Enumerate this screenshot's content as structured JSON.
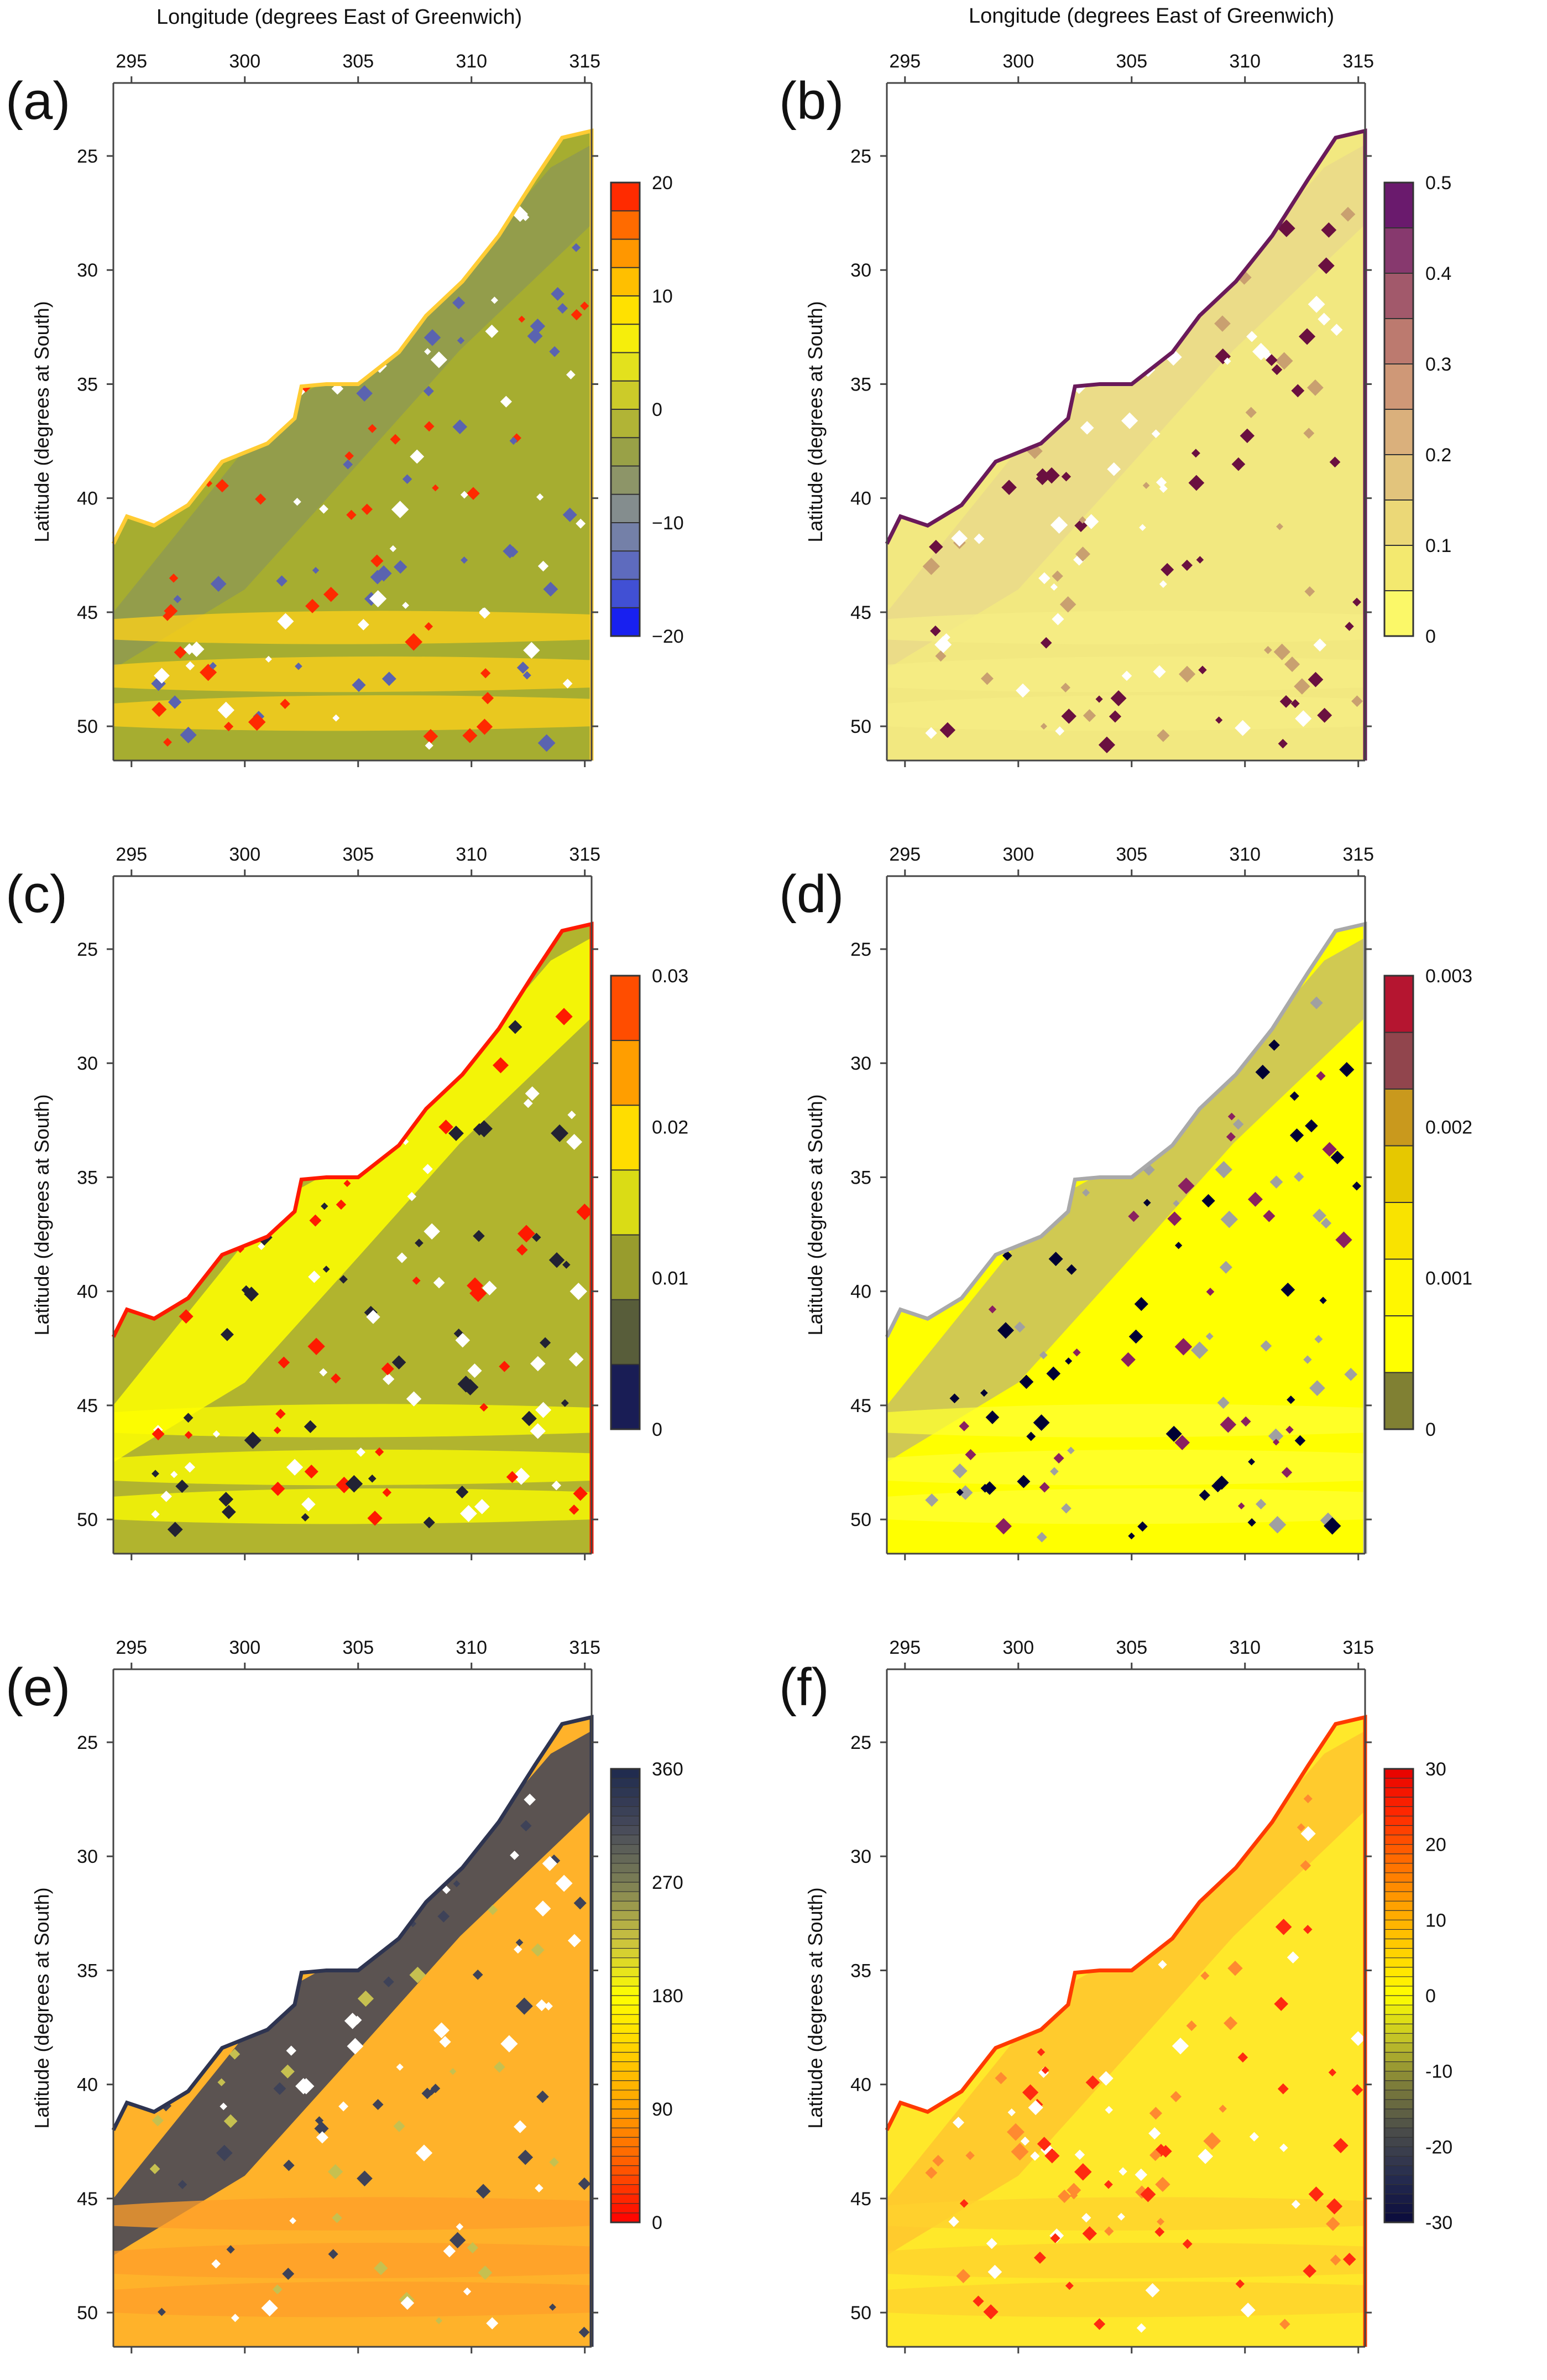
{
  "header": {
    "left_title": "Longitude (degrees East of Greenwich)",
    "right_title": "Longitude (degrees East of Greenwich)"
  },
  "chart_data": [
    {
      "type": "heatmap",
      "panel_label": "(a)",
      "title": "",
      "xlabel": "",
      "ylabel": "Latitude (degrees at South)",
      "x_ticks": [
        295,
        300,
        305,
        310,
        315
      ],
      "y_ticks": [
        25,
        30,
        35,
        40,
        45,
        50
      ],
      "xlim": [
        294.2,
        315.3
      ],
      "ylim": [
        51.5,
        21.8
      ],
      "colorbar": {
        "ticks": [
          "20",
          "10",
          "0",
          "−10",
          "−20"
        ],
        "tick_values": [
          20,
          10,
          0,
          -10,
          -20
        ],
        "range": [
          -20,
          20
        ],
        "levels": 16,
        "colors": [
          "#0000ff",
          "#2f3fe0",
          "#5260c8",
          "#6a76b4",
          "#7e8a9c",
          "#8a8f80",
          "#8f9a50",
          "#a3a83d",
          "#bfbf2e",
          "#d9d724",
          "#ecea15",
          "#fff200",
          "#ffd000",
          "#ffad00",
          "#ff8000",
          "#ff5500",
          "#ff0000"
        ],
        "style": "stepped"
      },
      "map": {
        "land_color": "#a6ad30",
        "land_alt_color": "#8f9a50",
        "band_color": "#ffd21a",
        "coast_color": "#ffcc33",
        "spot_colors": [
          "#ff2a00",
          "#5a63b0",
          "#ffffff"
        ]
      }
    },
    {
      "type": "heatmap",
      "panel_label": "(b)",
      "title": "",
      "xlabel": "",
      "ylabel": "Latitude (degrees at South)",
      "x_ticks": [
        295,
        300,
        305,
        310,
        315
      ],
      "y_ticks": [
        25,
        30,
        35,
        40,
        45,
        50
      ],
      "xlim": [
        294.2,
        315.3
      ],
      "ylim": [
        51.5,
        21.8
      ],
      "colorbar": {
        "ticks": [
          "0.5",
          "0.4",
          "0.3",
          "0.2",
          "0.1",
          "0"
        ],
        "tick_values": [
          0.5,
          0.4,
          0.3,
          0.2,
          0.1,
          0
        ],
        "range": [
          0,
          0.5
        ],
        "levels": 10,
        "colors": [
          "#ffff66",
          "#f7f06a",
          "#efe173",
          "#e6cf7a",
          "#deb97d",
          "#d6a67a",
          "#c88a74",
          "#b06a6a",
          "#94486c",
          "#7a2a70",
          "#5a0a6a"
        ],
        "style": "stepped"
      },
      "map": {
        "land_color": "#f2e880",
        "land_alt_color": "#ead98a",
        "band_color": "#f6ee84",
        "coast_color": "#6a1a5a",
        "spot_colors": [
          "#6a1040",
          "#ffffff",
          "#c9a070"
        ]
      }
    },
    {
      "type": "heatmap",
      "panel_label": "(c)",
      "title": "",
      "xlabel": "",
      "ylabel": "Latitude (degrees at South)",
      "x_ticks": [
        295,
        300,
        305,
        310,
        315
      ],
      "y_ticks": [
        25,
        30,
        35,
        40,
        45,
        50
      ],
      "xlim": [
        294.2,
        315.3
      ],
      "ylim": [
        51.5,
        21.8
      ],
      "colorbar": {
        "ticks": [
          "0.03",
          "0.02",
          "0.01",
          "0"
        ],
        "tick_values": [
          0.03,
          0.02,
          0.01,
          0
        ],
        "range": [
          0,
          0.03
        ],
        "levels": 7,
        "colors": [
          "#000066",
          "#333a44",
          "#7d8030",
          "#b4b82a",
          "#ffff00",
          "#ffbb00",
          "#ff8000",
          "#ff1a00"
        ],
        "style": "stepped"
      },
      "map": {
        "land_color": "#b1b42e",
        "land_alt_color": "#ffff00",
        "band_color": "#ffff00",
        "coast_color": "#ff1a00",
        "spot_colors": [
          "#ff1a00",
          "#222233",
          "#ffffff"
        ]
      }
    },
    {
      "type": "heatmap",
      "panel_label": "(d)",
      "title": "",
      "xlabel": "",
      "ylabel": "Latitude (degrees at South)",
      "x_ticks": [
        295,
        300,
        305,
        310,
        315
      ],
      "y_ticks": [
        25,
        30,
        35,
        40,
        45,
        50
      ],
      "xlim": [
        294.2,
        315.3
      ],
      "ylim": [
        51.5,
        21.8
      ],
      "colorbar": {
        "ticks": [
          "0.003",
          "0.002",
          "0.001",
          "0"
        ],
        "tick_values": [
          0.003,
          0.002,
          0.001,
          0
        ],
        "range": [
          0,
          0.003
        ],
        "levels": 8,
        "colors": [
          "#000066",
          "#ffff00",
          "#ffff00",
          "#ffee00",
          "#f2d800",
          "#d9b800",
          "#b87a3a",
          "#6a1060",
          "#ff1a00"
        ],
        "style": "stepped"
      },
      "map": {
        "land_color": "#ffff00",
        "land_alt_color": "#c8c060",
        "band_color": "#ffff33",
        "coast_color": "#a9a9a9",
        "spot_colors": [
          "#a0a0a0",
          "#8a2060",
          "#000033"
        ]
      }
    },
    {
      "type": "heatmap",
      "panel_label": "(e)",
      "title": "",
      "xlabel": "",
      "ylabel": "Latitude (degrees at South)",
      "x_ticks": [
        295,
        300,
        305,
        310,
        315
      ],
      "y_ticks": [
        25,
        30,
        35,
        40,
        45,
        50
      ],
      "xlim": [
        294.2,
        315.3
      ],
      "ylim": [
        51.5,
        21.8
      ],
      "colorbar": {
        "ticks": [
          "360",
          "270",
          "180",
          "90",
          "0"
        ],
        "tick_values": [
          360,
          270,
          180,
          90,
          0
        ],
        "range": [
          0,
          360
        ],
        "levels": 48,
        "colors": [
          "#ff0000",
          "#ff5a00",
          "#ffa000",
          "#ffd000",
          "#ffff00",
          "#c8c040",
          "#7c7f55",
          "#45485a",
          "#1e2a4e"
        ],
        "style": "striped"
      },
      "map": {
        "land_color": "#ffb22a",
        "land_alt_color": "#3e4258",
        "band_color": "#ff9d2a",
        "coast_color": "#2e3450",
        "spot_colors": [
          "#c6c050",
          "#3e4258",
          "#ffffff"
        ]
      }
    },
    {
      "type": "heatmap",
      "panel_label": "(f)",
      "title": "",
      "xlabel": "",
      "ylabel": "Latitude (degrees at South)",
      "x_ticks": [
        295,
        300,
        305,
        310,
        315
      ],
      "y_ticks": [
        25,
        30,
        35,
        40,
        45,
        50
      ],
      "xlim": [
        294.2,
        315.3
      ],
      "ylim": [
        51.5,
        21.8
      ],
      "colorbar": {
        "ticks": [
          "30",
          "20",
          "10",
          "0",
          "-10",
          "-20",
          "-30"
        ],
        "tick_values": [
          30,
          20,
          10,
          0,
          -10,
          -20,
          -30
        ],
        "range": [
          -30,
          30
        ],
        "levels": 48,
        "colors": [
          "#0a0a3c",
          "#262c50",
          "#4a4c4a",
          "#7c7c3a",
          "#c0c028",
          "#ffff00",
          "#ffd000",
          "#ffa000",
          "#ff6a00",
          "#ff2a00",
          "#e80000"
        ],
        "style": "striped"
      },
      "map": {
        "land_color": "#ffe82a",
        "land_alt_color": "#ffc62e",
        "band_color": "#ffd22e",
        "coast_color": "#ff3a00",
        "spot_colors": [
          "#ff2a10",
          "#ff8a30",
          "#ffffff"
        ]
      }
    }
  ]
}
